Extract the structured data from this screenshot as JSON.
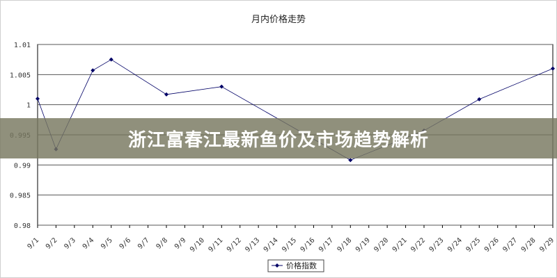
{
  "chart_data": {
    "type": "line",
    "title": "月内价格走势",
    "categories": [
      "9/1",
      "9/2",
      "9/3",
      "9/4",
      "9/5",
      "9/6",
      "9/7",
      "9/8",
      "9/9",
      "9/10",
      "9/11",
      "9/12",
      "9/13",
      "9/14",
      "9/15",
      "9/16",
      "9/17",
      "9/18",
      "9/19",
      "9/20",
      "9/21",
      "9/22",
      "9/23",
      "9/24",
      "9/25",
      "9/26",
      "9/27",
      "9/28",
      "9/29"
    ],
    "series": [
      {
        "name": "价格指数",
        "color": "#000066",
        "values": [
          1.001,
          0.9926,
          null,
          1.0057,
          1.0075,
          null,
          null,
          1.0017,
          null,
          null,
          1.003,
          null,
          null,
          null,
          null,
          null,
          null,
          0.9908,
          null,
          null,
          null,
          0.9957,
          null,
          null,
          1.0009,
          null,
          null,
          null,
          1.006
        ]
      }
    ],
    "ylim": [
      0.98,
      1.01
    ],
    "yticks": [
      "1.01",
      "1.005",
      "1",
      "0.995",
      "0.99",
      "0.985",
      "0.98"
    ],
    "yticks_values": [
      1.01,
      1.005,
      1,
      0.995,
      0.99,
      0.985,
      0.98
    ],
    "grid": true,
    "legend": "bottom"
  },
  "banner": {
    "text": "浙江富春江最新鱼价及市场趋势解析",
    "color": "#78785f"
  }
}
